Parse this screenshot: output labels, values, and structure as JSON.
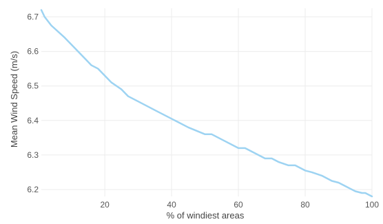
{
  "chart_data": {
    "type": "line",
    "title": "",
    "xlabel": "% of windiest areas",
    "ylabel": "Mean Wind Speed (m/s)",
    "xlim": [
      1,
      100
    ],
    "ylim": [
      6.18,
      6.725
    ],
    "x_ticks": [
      20,
      40,
      60,
      80,
      100
    ],
    "y_ticks": [
      6.2,
      6.3,
      6.4,
      6.5,
      6.6,
      6.7
    ],
    "x_tick_labels": [
      "20",
      "40",
      "60",
      "80",
      "100"
    ],
    "y_tick_labels": [
      "6.2",
      "6.3",
      "6.4",
      "6.5",
      "6.6",
      "6.7"
    ],
    "grid": true,
    "series": [
      {
        "color": "#9dd3f2",
        "x": [
          1,
          2,
          4,
          8,
          12,
          16,
          18,
          20,
          22,
          25,
          27,
          30,
          35,
          40,
          45,
          50,
          52,
          55,
          60,
          62,
          65,
          68,
          70,
          72,
          75,
          77,
          80,
          82,
          85,
          88,
          90,
          92,
          95,
          97,
          98,
          100
        ],
        "y": [
          6.72,
          6.7,
          6.675,
          6.64,
          6.6,
          6.56,
          6.55,
          6.53,
          6.51,
          6.49,
          6.47,
          6.455,
          6.43,
          6.405,
          6.38,
          6.36,
          6.36,
          6.345,
          6.32,
          6.32,
          6.305,
          6.29,
          6.29,
          6.28,
          6.27,
          6.27,
          6.255,
          6.25,
          6.24,
          6.225,
          6.22,
          6.21,
          6.195,
          6.19,
          6.19,
          6.18
        ]
      }
    ]
  }
}
